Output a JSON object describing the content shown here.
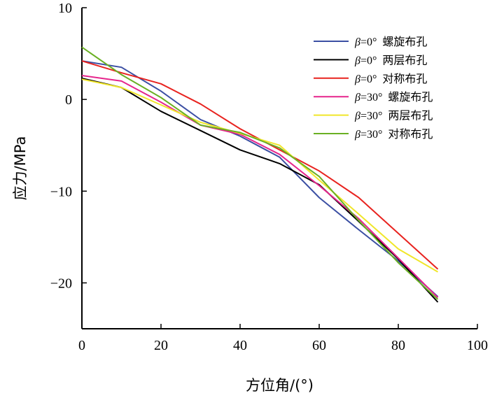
{
  "chart_data": {
    "type": "line",
    "xlabel": "方位角/(°)",
    "ylabel": "应力/MPa",
    "xlim": [
      0,
      100
    ],
    "ylim": [
      -25,
      10
    ],
    "xticks": [
      0,
      20,
      40,
      60,
      80,
      100
    ],
    "xtick_labels": [
      "0",
      "20",
      "40",
      "60",
      "80",
      "100"
    ],
    "yticks": [
      10,
      0,
      -10,
      -20
    ],
    "ytick_labels": [
      "10",
      "0",
      "−10",
      "−20"
    ],
    "grid": false,
    "legend_position": "top-right",
    "series": [
      {
        "name": "β=0° 螺旋布孔",
        "legend": {
          "sym": "β",
          "eq": "=0°",
          "label": "螺旋布孔"
        },
        "color": "#3b4fa3",
        "x": [
          0,
          10,
          20,
          30,
          40,
          50,
          60,
          70,
          80,
          90
        ],
        "y": [
          4.2,
          3.5,
          0.9,
          -2.2,
          -4.0,
          -6.3,
          -10.7,
          -14.2,
          -17.6,
          -21.5
        ]
      },
      {
        "name": "β=0° 两层布孔",
        "legend": {
          "sym": "β",
          "eq": "=0°",
          "label": "两层布孔"
        },
        "color": "#000000",
        "x": [
          0,
          10,
          20,
          30,
          40,
          50,
          60,
          70,
          80,
          90
        ],
        "y": [
          2.3,
          1.3,
          -1.3,
          -3.4,
          -5.5,
          -7.0,
          -9.3,
          -13.3,
          -17.4,
          -22.1
        ]
      },
      {
        "name": "β=0° 对称布孔",
        "legend": {
          "sym": "β",
          "eq": "=0°",
          "label": "对称布孔"
        },
        "color": "#e8231f",
        "x": [
          0,
          10,
          20,
          30,
          40,
          50,
          60,
          70,
          80,
          90
        ],
        "y": [
          4.2,
          2.9,
          1.7,
          -0.5,
          -3.2,
          -5.5,
          -7.8,
          -10.7,
          -14.6,
          -18.5
        ]
      },
      {
        "name": "β=30° 螺旋布孔",
        "legend": {
          "sym": "β",
          "eq": "=30°",
          "label": "螺旋布孔"
        },
        "color": "#e6258c",
        "x": [
          0,
          10,
          20,
          30,
          40,
          50,
          60,
          70,
          80,
          90
        ],
        "y": [
          2.6,
          2.0,
          -0.3,
          -2.8,
          -3.8,
          -6.0,
          -9.4,
          -13.0,
          -17.3,
          -21.6
        ]
      },
      {
        "name": "β=30° 两层布孔",
        "legend": {
          "sym": "β",
          "eq": "=30°",
          "label": "两层布孔"
        },
        "color": "#f0e62a",
        "x": [
          0,
          10,
          20,
          30,
          40,
          50,
          60,
          70,
          80,
          90
        ],
        "y": [
          2.2,
          1.3,
          -0.6,
          -2.5,
          -3.7,
          -5.0,
          -8.8,
          -12.5,
          -16.3,
          -18.8
        ]
      },
      {
        "name": "β=30° 对称布孔",
        "legend": {
          "sym": "β",
          "eq": "=30°",
          "label": "对称布孔"
        },
        "color": "#6ab023",
        "x": [
          0,
          10,
          20,
          30,
          40,
          50,
          60,
          70,
          80,
          90
        ],
        "y": [
          5.7,
          2.7,
          0.2,
          -2.8,
          -3.6,
          -5.3,
          -8.4,
          -13.2,
          -17.8,
          -21.8
        ]
      }
    ]
  }
}
